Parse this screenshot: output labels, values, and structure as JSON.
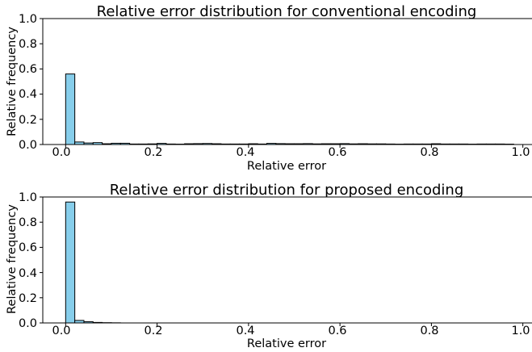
{
  "chart_data": [
    {
      "type": "bar",
      "title": "Relative error distribution for conventional encoding",
      "xlabel": "Relative error",
      "ylabel": "Relative frequency",
      "xlim": [
        -0.05,
        1.02
      ],
      "ylim": [
        0,
        1.0
      ],
      "xticks": [
        "0.0",
        "0.2",
        "0.4",
        "0.6",
        "0.8",
        "1.0"
      ],
      "yticks": [
        "0.0",
        "0.2",
        "0.4",
        "0.6",
        "0.8",
        "1.0"
      ],
      "bin_width": 0.02,
      "bins": [
        0.0,
        0.02,
        0.04,
        0.06,
        0.08,
        0.1,
        0.12,
        0.14,
        0.16,
        0.18,
        0.2,
        0.22,
        0.24,
        0.26,
        0.28,
        0.3,
        0.32,
        0.34,
        0.36,
        0.38,
        0.4,
        0.42,
        0.44,
        0.46,
        0.48,
        0.5,
        0.52,
        0.54,
        0.56,
        0.58,
        0.6,
        0.62,
        0.64,
        0.66,
        0.68,
        0.7,
        0.72,
        0.74,
        0.76,
        0.78,
        0.8,
        0.82,
        0.84,
        0.86,
        0.88,
        0.9,
        0.92,
        0.94,
        0.96
      ],
      "values": [
        0.56,
        0.02,
        0.012,
        0.015,
        0.006,
        0.01,
        0.01,
        0.004,
        0.004,
        0.005,
        0.009,
        0.004,
        0.003,
        0.006,
        0.007,
        0.008,
        0.006,
        0.004,
        0.004,
        0.004,
        0.006,
        0.004,
        0.009,
        0.007,
        0.006,
        0.006,
        0.007,
        0.005,
        0.006,
        0.006,
        0.007,
        0.005,
        0.006,
        0.005,
        0.005,
        0.004,
        0.003,
        0.004,
        0.004,
        0.004,
        0.006,
        0.004,
        0.004,
        0.004,
        0.003,
        0.004,
        0.004,
        0.004,
        0.003
      ],
      "bar_color": "#87ceeb",
      "edge_color": "#000000",
      "grid": false
    },
    {
      "type": "bar",
      "title": "Relative error distribution for proposed encoding",
      "xlabel": "Relative error",
      "ylabel": "Relative frequency",
      "xlim": [
        -0.05,
        1.02
      ],
      "ylim": [
        0,
        1.0
      ],
      "xticks": [
        "0.0",
        "0.2",
        "0.4",
        "0.6",
        "0.8",
        "1.0"
      ],
      "yticks": [
        "0.0",
        "0.2",
        "0.4",
        "0.6",
        "0.8",
        "1.0"
      ],
      "bin_width": 0.02,
      "bins": [
        0.0,
        0.02,
        0.04,
        0.06,
        0.08,
        0.1
      ],
      "values": [
        0.96,
        0.02,
        0.01,
        0.004,
        0.002,
        0.001
      ],
      "bar_color": "#87ceeb",
      "edge_color": "#000000",
      "grid": false
    }
  ]
}
